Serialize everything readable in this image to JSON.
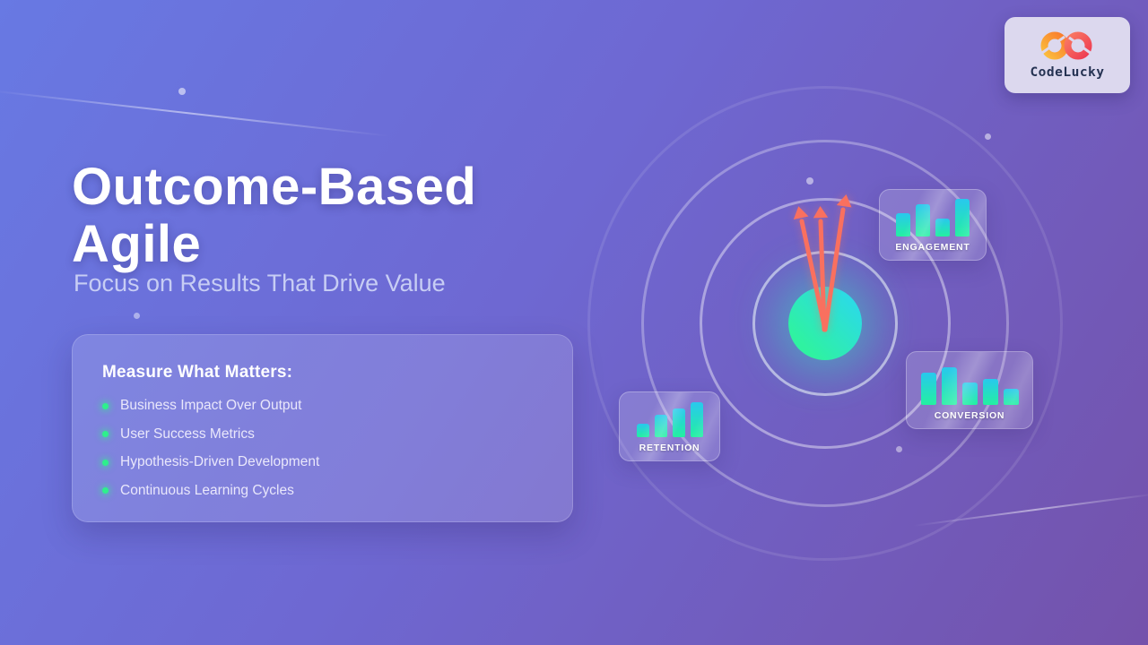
{
  "slide": {
    "title_line1": "Outcome-Based",
    "title_line2": "Agile",
    "subtitle": "Focus on Results That Drive Value"
  },
  "brand": {
    "name": "CodeLucky",
    "logo_icon": "infinity-icon"
  },
  "info_card": {
    "heading": "Measure What Matters:",
    "bullets": [
      "Business Impact Over Output",
      "User Success Metrics",
      "Hypothesis-Driven Development",
      "Continuous Learning Cycles"
    ]
  },
  "chart_data": [
    {
      "type": "bar",
      "title": "ENGAGEMENT",
      "values": [
        62,
        86,
        48,
        100
      ],
      "unit": "relative-%",
      "legend_position": "bottom"
    },
    {
      "type": "bar",
      "title": "CONVERSION",
      "values": [
        81,
        95,
        57,
        67,
        40
      ],
      "unit": "relative-%",
      "legend_position": "bottom"
    },
    {
      "type": "bar",
      "title": "RETENTION",
      "values": [
        38,
        62,
        81,
        98
      ],
      "unit": "relative-%",
      "legend_position": "bottom"
    }
  ],
  "colors": {
    "background_start": "#6879e3",
    "background_mid": "#6e68d2",
    "background_end": "#7452ab",
    "bar_gradient_top": "#28c8ee",
    "bar_gradient_bottom": "#23f0a0",
    "center_circle_cyan": "#2bd7f0",
    "center_circle_green": "#2ff2a1",
    "arrow": "#f9705f",
    "bullet_dot": "#2ef08c",
    "logo_orange": "#f98a3c",
    "logo_red": "#ee3b52",
    "brand_text": "#253252"
  }
}
